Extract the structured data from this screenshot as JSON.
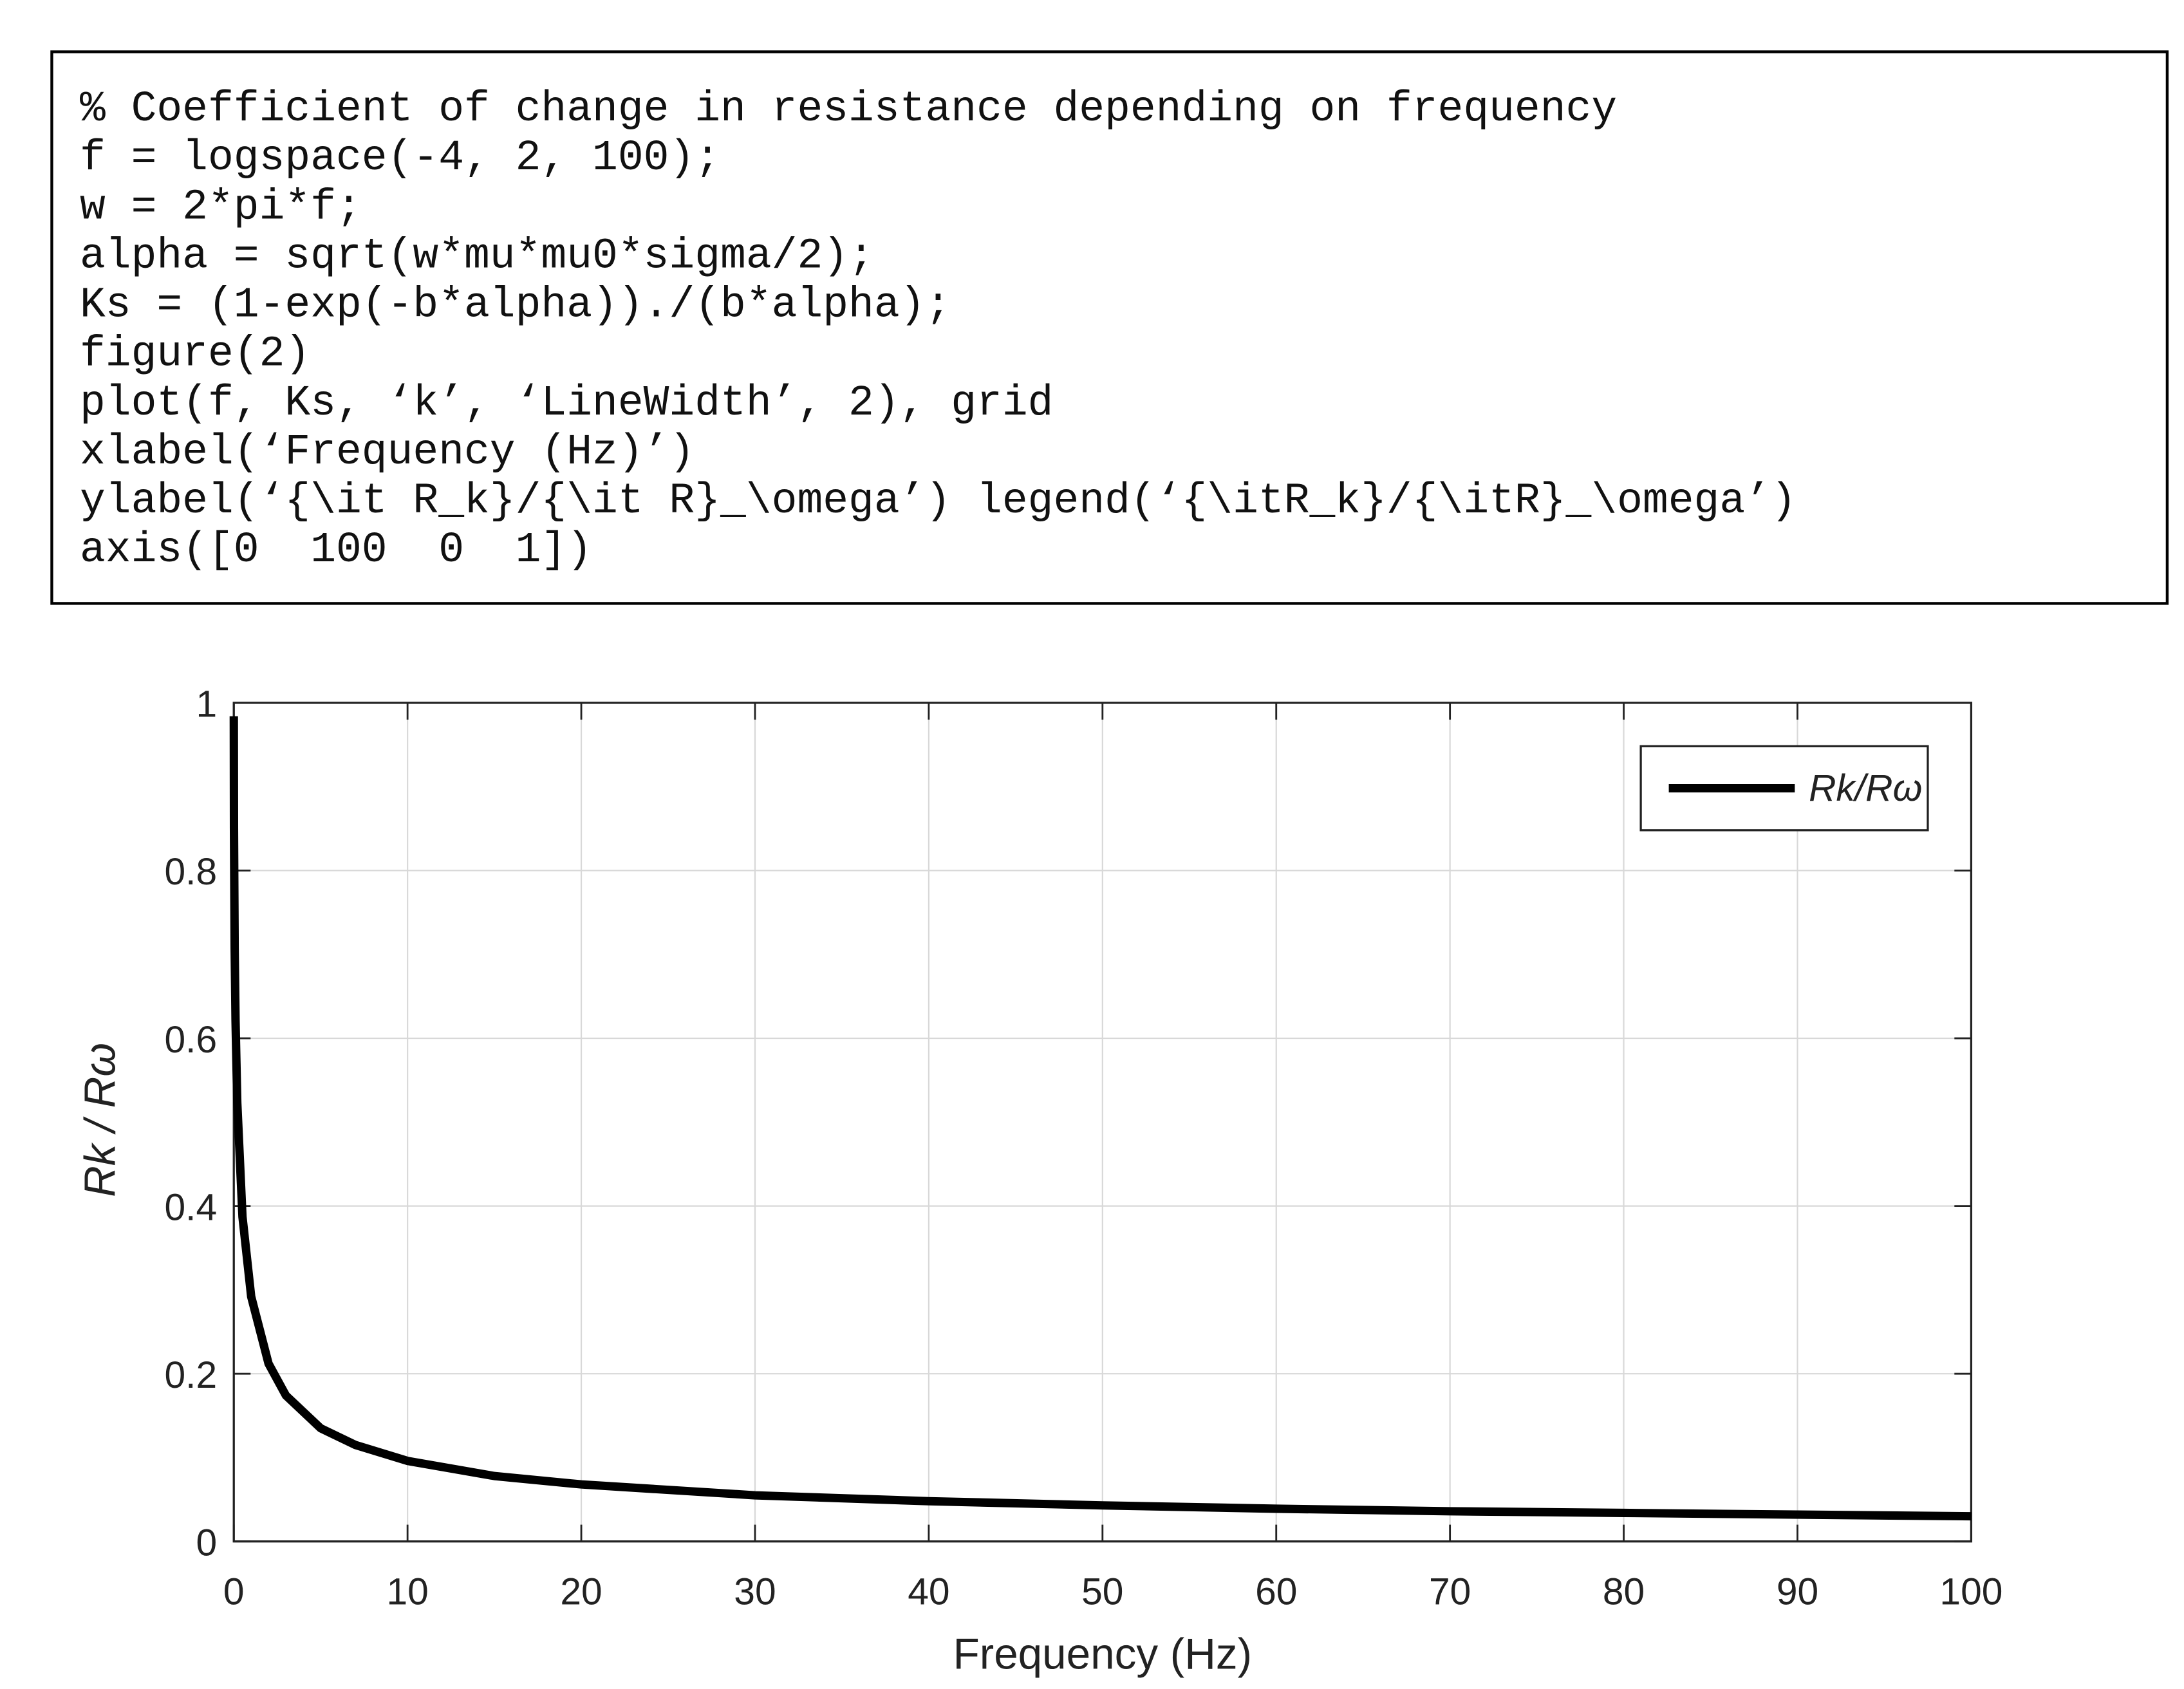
{
  "code": {
    "lines": [
      "% Coefficient of change in resistance depending on frequency",
      "f = logspace(-4, 2, 100);",
      "w = 2*pi*f;",
      "alpha = sqrt(w*mu*mu0*sigma/2);",
      "Ks = (1-exp(-b*alpha))./(b*alpha);",
      "figure(2)",
      "plot(f, Ks, ‘k’, ‘LineWidth’, 2), grid",
      "xlabel(‘Frequency (Hz)’)",
      "ylabel(‘{\\it R_k}/{\\it R}_\\omega’) legend(‘{\\itR_k}/{\\itR}_\\omega’)",
      "axis([0  100  0  1])"
    ]
  },
  "chart_data": {
    "type": "line",
    "xlabel": "Frequency (Hz)",
    "ylabel": "Rk / Rω",
    "x": [
      0.0001,
      0.01,
      0.05,
      0.1,
      0.2,
      0.5,
      1,
      2,
      3,
      5,
      7,
      10,
      15,
      20,
      30,
      40,
      50,
      60,
      70,
      80,
      90,
      100
    ],
    "series": [
      {
        "name": "Rk/Rω",
        "color": "#000000",
        "values": [
          0.984,
          0.851,
          0.707,
          0.621,
          0.523,
          0.387,
          0.292,
          0.212,
          0.174,
          0.135,
          0.115,
          0.096,
          0.078,
          0.068,
          0.055,
          0.048,
          0.043,
          0.039,
          0.036,
          0.034,
          0.032,
          0.03
        ]
      }
    ],
    "xlim": [
      0,
      100
    ],
    "xticks": [
      0,
      10,
      20,
      30,
      40,
      50,
      60,
      70,
      80,
      90,
      100
    ],
    "ylim": [
      0,
      1
    ],
    "yticks": [
      0,
      0.2,
      0.4,
      0.6,
      0.8,
      1
    ],
    "grid": true,
    "legend": "upper right"
  }
}
